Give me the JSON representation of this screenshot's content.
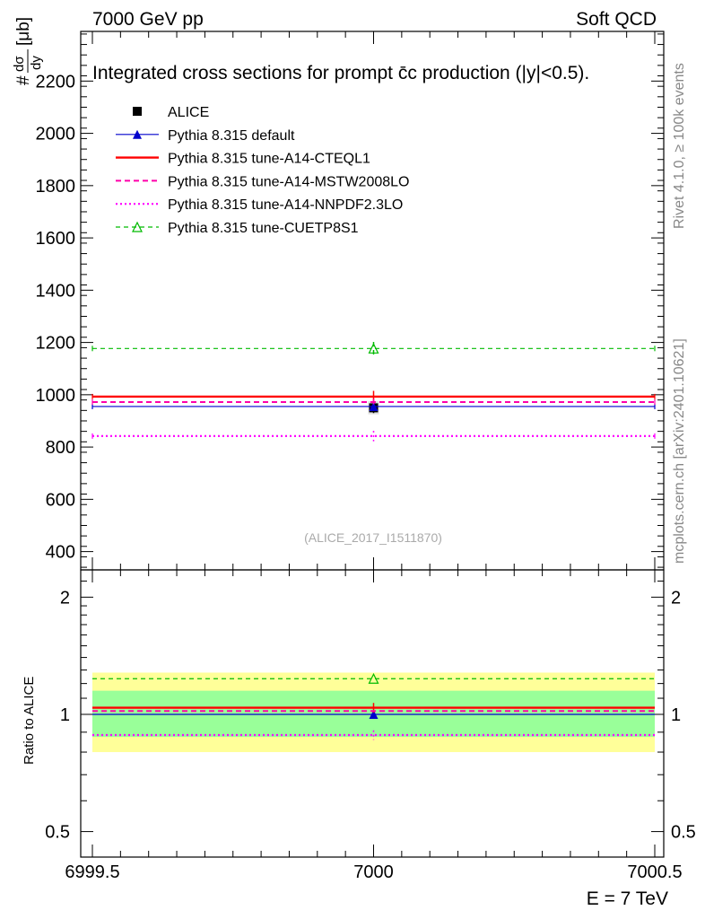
{
  "header": {
    "left": "7000 GeV pp",
    "right": "Soft QCD"
  },
  "side_labels": {
    "rivet": "Rivet 4.1.0, ≥ 100k events",
    "mcplots": "mcplots.cern.ch [arXiv:2401.10621]"
  },
  "colors": {
    "alice": "#000000",
    "default": "#0000cc",
    "cteql1": "#ff0000",
    "mstw": "#ff00aa",
    "nnpdf": "#ff00ff",
    "cuetp8s1": "#00bb00",
    "band_yellow": "#ffff99",
    "band_green": "#99ff99"
  },
  "chart_data": [
    {
      "type": "line",
      "panel": "main",
      "title": "Integrated cross sections for prompt c̄c production (|y|<0.5).",
      "ylabel_num": "dσ",
      "ylabel_den": "dy",
      "ylabel_unit": "[μb]",
      "ylabel_hash": "#",
      "watermark": "(ALICE_2017_I1511870)",
      "xlim": [
        6999.5,
        7000.5
      ],
      "ylim": [
        330,
        2390
      ],
      "yticks": [
        400,
        600,
        800,
        1000,
        1200,
        1400,
        1600,
        1800,
        2000,
        2200
      ],
      "legend_position": "top-left",
      "series": [
        {
          "name": "ALICE",
          "key": "alice",
          "style": "marker-square",
          "x": 7000,
          "y": 950,
          "err": 20,
          "err_syst": 25
        },
        {
          "name": "Pythia 8.315 default",
          "key": "default",
          "style": "solid-triangle",
          "y": 955,
          "err": 10
        },
        {
          "name": "Pythia 8.315 tune-A14-CTEQL1",
          "key": "cteql1",
          "style": "solid-thick",
          "y": 993,
          "err": 22
        },
        {
          "name": "Pythia 8.315 tune-A14-MSTW2008LO",
          "key": "mstw",
          "style": "dashed",
          "y": 972,
          "err": 12
        },
        {
          "name": "Pythia 8.315 tune-A14-NNPDF2.3LO",
          "key": "nnpdf",
          "style": "dotted",
          "y": 842,
          "err": 20
        },
        {
          "name": "Pythia 8.315 tune-CUETP8S1",
          "key": "cuetp8s1",
          "style": "dashed-open-triangle",
          "y": 1177,
          "err": 25
        }
      ]
    },
    {
      "type": "line",
      "panel": "ratio",
      "ylabel": "Ratio to ALICE",
      "xlabel": "E = 7 TeV",
      "xlim": [
        6999.5,
        7000.5
      ],
      "xticks": [
        "6999.5",
        "7000",
        "7000.5"
      ],
      "ylim": [
        0.43,
        2.35
      ],
      "yticks": [
        0.5,
        1,
        2
      ],
      "yticklabels": [
        "0.5",
        "1",
        "2"
      ],
      "band_yellow": [
        0.8,
        1.28
      ],
      "band_green": [
        0.875,
        1.15
      ],
      "series": [
        {
          "key": "alice",
          "y": 1.0
        },
        {
          "key": "default",
          "y": 1.0
        },
        {
          "key": "cteql1",
          "y": 1.04,
          "err": 0.03
        },
        {
          "key": "mstw",
          "y": 1.02
        },
        {
          "key": "nnpdf",
          "y": 0.885,
          "err": 0.025
        },
        {
          "key": "cuetp8s1",
          "y": 1.235
        }
      ]
    }
  ]
}
